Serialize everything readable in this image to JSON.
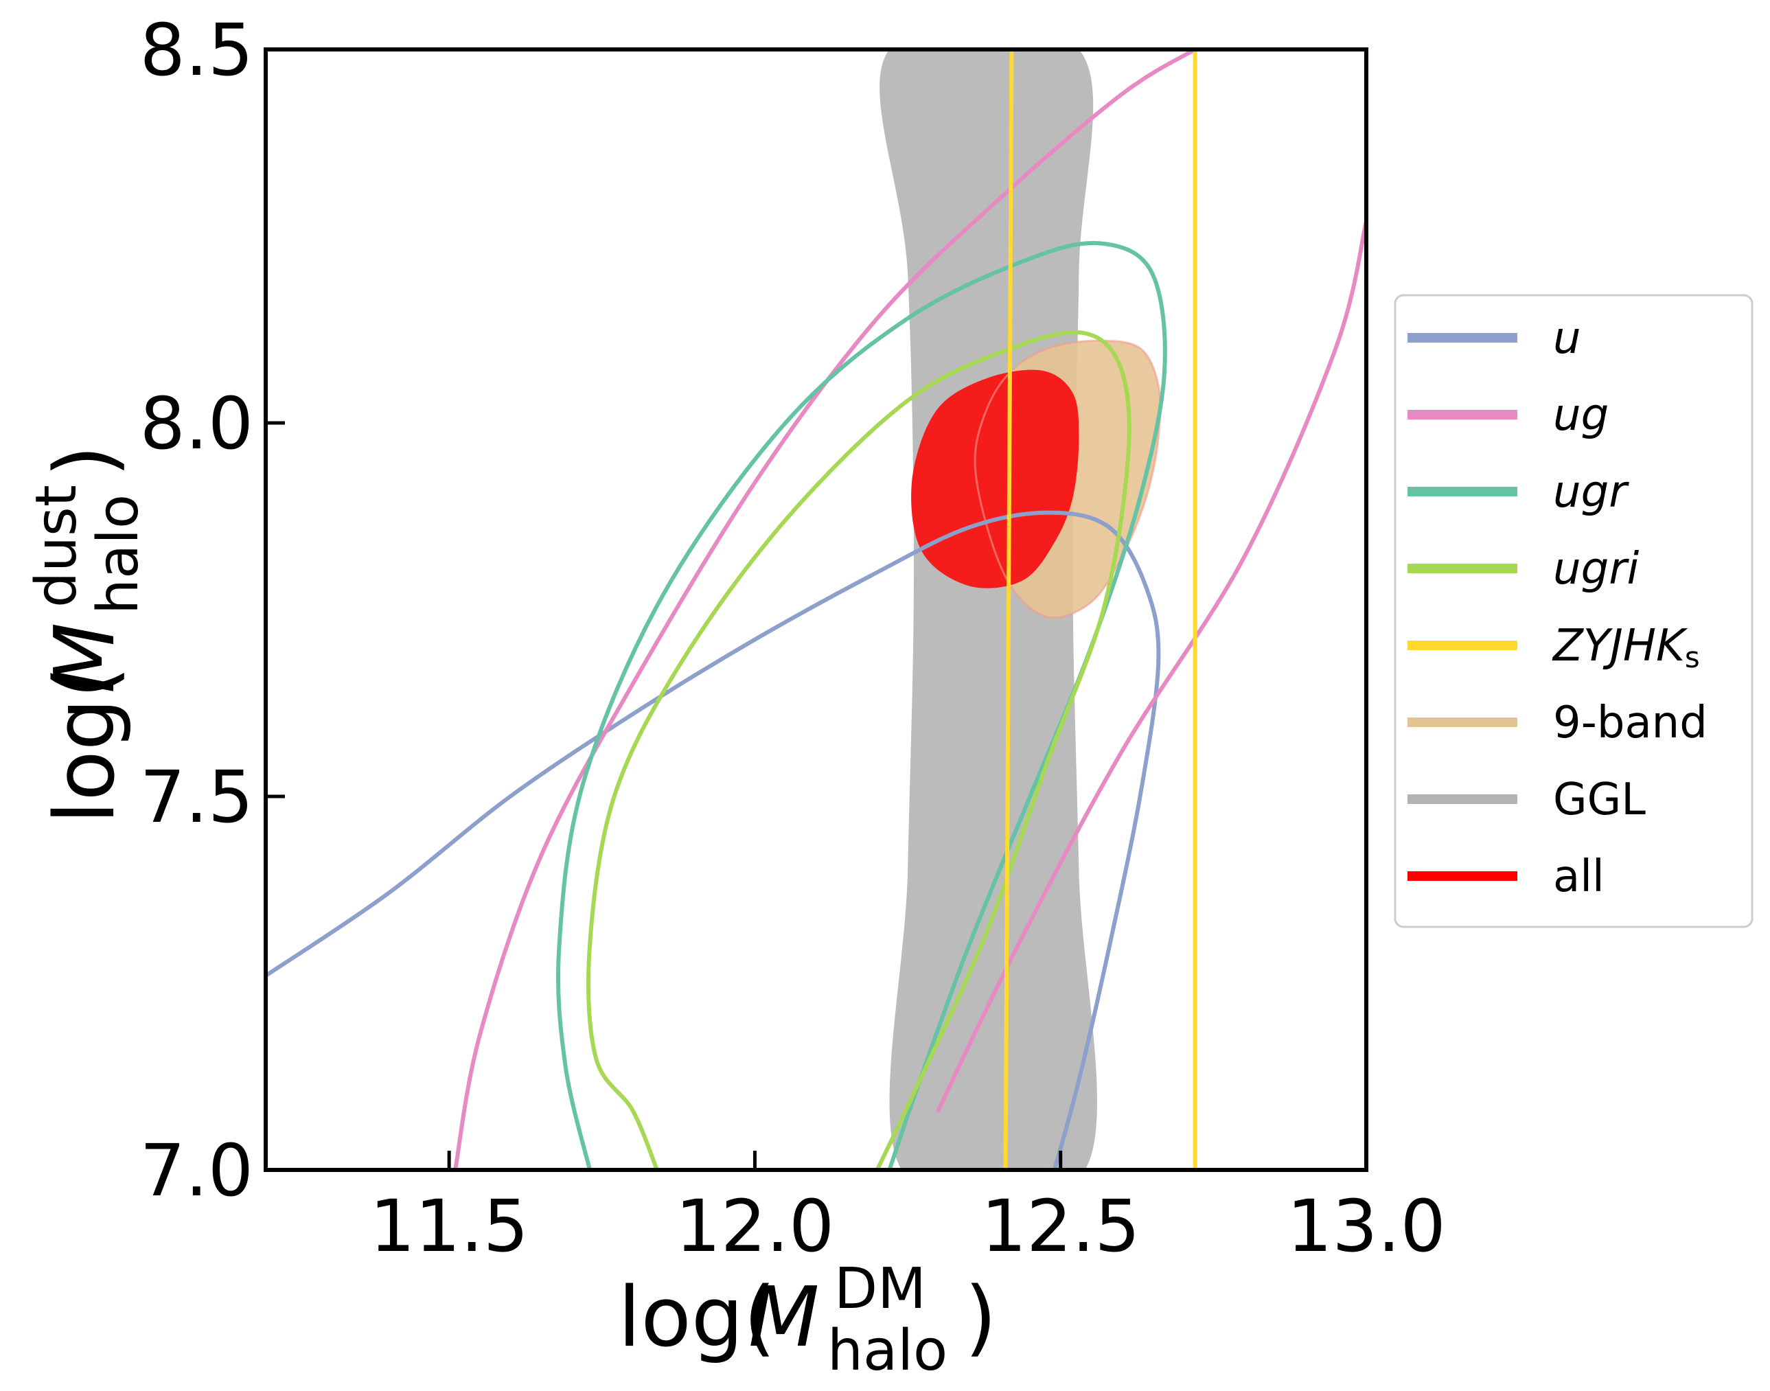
{
  "chart_data": {
    "type": "contour",
    "xlabel": {
      "main": "log(",
      "var": "M",
      "sup": "DM",
      "sub": "halo",
      "close": ")"
    },
    "ylabel": {
      "main": "log(",
      "var": "M",
      "sup": "dust",
      "sub": "halo",
      "close": ")"
    },
    "xlim": [
      11.2,
      13.0
    ],
    "ylim": [
      7.0,
      8.5
    ],
    "xticks": [
      11.5,
      12.0,
      12.5,
      13.0
    ],
    "yticks": [
      7.0,
      7.5,
      8.0,
      8.5
    ],
    "xtick_labels": [
      "11.5",
      "12.0",
      "12.5",
      "13.0"
    ],
    "ytick_labels": [
      "7.0",
      "7.5",
      "8.0",
      "8.5"
    ],
    "legend_position": "right-outside",
    "legend": [
      {
        "label": "u",
        "italic": true,
        "color": "#8da0cb"
      },
      {
        "label": "ug",
        "italic": true,
        "color": "#e78ac3"
      },
      {
        "label": "ugr",
        "italic": true,
        "color": "#66c2a5"
      },
      {
        "label": "ugri",
        "italic": true,
        "color": "#a6d854"
      },
      {
        "label": "ZYJHK",
        "italic": true,
        "label_sub": "s",
        "color": "#ffd92f"
      },
      {
        "label": "9-band",
        "italic": false,
        "color": "#e5c494"
      },
      {
        "label": "GGL",
        "italic": false,
        "color": "#b3b3b3"
      },
      {
        "label": "all",
        "italic": false,
        "color": "#ff0000"
      }
    ],
    "series": [
      {
        "name": "GGL",
        "kind": "band",
        "color": "#bbbbbb",
        "left": [
          [
            12.24,
            7.0
          ],
          [
            12.25,
            7.4
          ],
          [
            12.26,
            7.8
          ],
          [
            12.25,
            8.2
          ],
          [
            12.22,
            8.5
          ]
        ],
        "right": [
          [
            12.54,
            7.0
          ],
          [
            12.53,
            7.4
          ],
          [
            12.52,
            7.8
          ],
          [
            12.53,
            8.2
          ],
          [
            12.53,
            8.5
          ]
        ]
      },
      {
        "name": "9-band",
        "kind": "filled",
        "color": "#e5c494",
        "points": [
          [
            12.48,
            7.74
          ],
          [
            12.55,
            7.76
          ],
          [
            12.6,
            7.82
          ],
          [
            12.64,
            7.9
          ],
          [
            12.66,
            7.98
          ],
          [
            12.66,
            8.05
          ],
          [
            12.63,
            8.1
          ],
          [
            12.56,
            8.11
          ],
          [
            12.48,
            8.1
          ],
          [
            12.42,
            8.07
          ],
          [
            12.38,
            8.02
          ],
          [
            12.36,
            7.95
          ],
          [
            12.38,
            7.86
          ],
          [
            12.42,
            7.78
          ]
        ]
      },
      {
        "name": "all",
        "kind": "filled",
        "color": "#f51c1c",
        "points": [
          [
            12.36,
            7.78
          ],
          [
            12.44,
            7.79
          ],
          [
            12.49,
            7.84
          ],
          [
            12.52,
            7.9
          ],
          [
            12.53,
            7.98
          ],
          [
            12.52,
            8.04
          ],
          [
            12.47,
            8.07
          ],
          [
            12.38,
            8.06
          ],
          [
            12.3,
            8.02
          ],
          [
            12.26,
            7.94
          ],
          [
            12.26,
            7.86
          ],
          [
            12.29,
            7.81
          ]
        ]
      },
      {
        "name": "u",
        "kind": "contour",
        "color": "#8da0cb",
        "points": [
          [
            11.2,
            7.26
          ],
          [
            11.4,
            7.37
          ],
          [
            11.6,
            7.5
          ],
          [
            11.8,
            7.61
          ],
          [
            12.0,
            7.71
          ],
          [
            12.2,
            7.8
          ],
          [
            12.35,
            7.86
          ],
          [
            12.48,
            7.88
          ],
          [
            12.58,
            7.86
          ],
          [
            12.64,
            7.78
          ],
          [
            12.66,
            7.68
          ],
          [
            12.63,
            7.5
          ],
          [
            12.58,
            7.3
          ],
          [
            12.53,
            7.12
          ],
          [
            12.49,
            7.0
          ]
        ]
      },
      {
        "name": "ug",
        "kind": "contour",
        "color": "#e78ac3",
        "points": [
          [
            11.51,
            7.0
          ],
          [
            11.55,
            7.18
          ],
          [
            11.65,
            7.42
          ],
          [
            11.8,
            7.65
          ],
          [
            12.0,
            7.92
          ],
          [
            12.2,
            8.14
          ],
          [
            12.4,
            8.3
          ],
          [
            12.6,
            8.44
          ],
          [
            12.72,
            8.5
          ]
        ],
        "points2": [
          [
            12.3,
            7.08
          ],
          [
            12.43,
            7.3
          ],
          [
            12.6,
            7.56
          ],
          [
            12.8,
            7.82
          ],
          [
            12.95,
            8.1
          ],
          [
            13.0,
            8.27
          ]
        ]
      },
      {
        "name": "ugr",
        "kind": "contour",
        "color": "#66c2a5",
        "points": [
          [
            11.73,
            7.0
          ],
          [
            11.69,
            7.14
          ],
          [
            11.68,
            7.3
          ],
          [
            11.72,
            7.52
          ],
          [
            11.85,
            7.77
          ],
          [
            12.05,
            8.0
          ],
          [
            12.25,
            8.14
          ],
          [
            12.45,
            8.22
          ],
          [
            12.57,
            8.24
          ],
          [
            12.65,
            8.2
          ],
          [
            12.67,
            8.07
          ],
          [
            12.63,
            7.9
          ],
          [
            12.55,
            7.7
          ],
          [
            12.45,
            7.5
          ],
          [
            12.35,
            7.3
          ],
          [
            12.27,
            7.12
          ],
          [
            12.22,
            7.0
          ]
        ]
      },
      {
        "name": "ugri",
        "kind": "contour",
        "color": "#a6d854",
        "points": [
          [
            11.84,
            7.0
          ],
          [
            11.8,
            7.08
          ],
          [
            11.74,
            7.15
          ],
          [
            11.73,
            7.3
          ],
          [
            11.77,
            7.5
          ],
          [
            11.88,
            7.68
          ],
          [
            12.05,
            7.87
          ],
          [
            12.25,
            8.03
          ],
          [
            12.42,
            8.1
          ],
          [
            12.54,
            8.12
          ],
          [
            12.6,
            8.07
          ],
          [
            12.61,
            7.95
          ],
          [
            12.57,
            7.75
          ],
          [
            12.48,
            7.55
          ],
          [
            12.38,
            7.32
          ],
          [
            12.27,
            7.12
          ],
          [
            12.2,
            7.0
          ]
        ]
      },
      {
        "name": "ZYJHKs",
        "kind": "vline",
        "color": "#ffd92f",
        "lines": [
          [
            [
              12.41,
              7.0
            ],
            [
              12.42,
              8.5
            ]
          ],
          [
            [
              12.72,
              7.0
            ],
            [
              12.72,
              8.5
            ]
          ]
        ]
      }
    ]
  }
}
